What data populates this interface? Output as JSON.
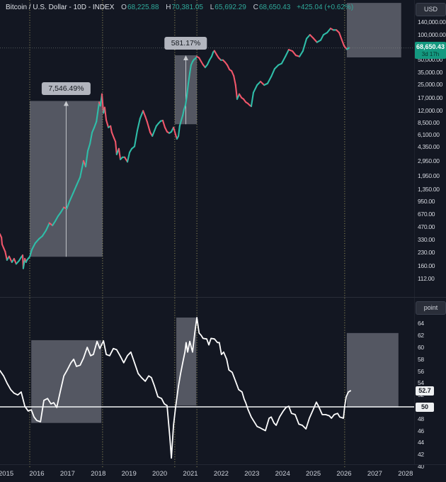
{
  "meta": {
    "background": "#131722",
    "up_color": "#2fbda8",
    "down_color": "#f0566a",
    "accent_teal": "#2fa99a",
    "badge_green": "#149980",
    "box_fill": "rgba(173,177,189,0.42)",
    "vline_color": "#b8b06a",
    "osc_line_color": "#ffffff"
  },
  "legend": {
    "title": "Bitcoin / U.S. Dollar - 10D - INDEX",
    "o_label": "O",
    "o": "68,225.88",
    "h_label": "H",
    "h": "70,381.05",
    "l_label": "L",
    "l": "65,692.29",
    "c_label": "C",
    "c": "68,650.43",
    "change": "+425.04 (+0.62%)"
  },
  "price_axis": {
    "currency_button": "USD",
    "tick_values": [
      140000,
      100000,
      50000,
      35000,
      25000,
      17000,
      12000,
      8500,
      6100,
      4350,
      2950,
      1950,
      1350,
      950,
      670,
      470,
      330,
      230,
      160,
      112
    ],
    "tick_labels": [
      "140,000.00",
      "100,000.00",
      "50,000.00",
      "35,000.00",
      "25,000.00",
      "17,000.00",
      "12,000.00",
      "8,500.00",
      "6,100.00",
      "4,350.00",
      "2,950.00",
      "1,950.00",
      "1,350.00",
      "950.00",
      "670.00",
      "470.00",
      "330.00",
      "230.00",
      "160.00",
      "112.00"
    ],
    "last_price": 68650.43,
    "last_price_label": "68,650.43",
    "countdown": "3d 17h"
  },
  "osc_axis": {
    "unit_button": "point",
    "tick_values": [
      64,
      62,
      60,
      58,
      56,
      54,
      52,
      48,
      46,
      44,
      42,
      40
    ],
    "current_value": 52.7,
    "current_label": "52.7",
    "level_value": 50,
    "level_label": "50"
  },
  "timeline": {
    "years": [
      "2015",
      "2016",
      "2017",
      "2018",
      "2019",
      "2020",
      "2021",
      "2022",
      "2023",
      "2024",
      "2025",
      "2026",
      "2027",
      "2028"
    ]
  },
  "drawings": {
    "vlines_years": [
      2015.77,
      2018.14,
      2020.49,
      2021.21,
      2026.02
    ],
    "range_measures": [
      {
        "panel": "price",
        "label": "7,546.49%",
        "year_from": 2015.77,
        "year_to": 2018.14,
        "price_from": 205,
        "price_to": 15675
      },
      {
        "panel": "price",
        "label": "581.17%",
        "year_from": 2020.49,
        "year_to": 2021.21,
        "price_from": 8200,
        "price_to": 55856
      }
    ],
    "highlight_boxes": [
      {
        "panel": "price",
        "year_from": 2026.09,
        "year_to": 2027.86,
        "price_from": 52700,
        "price_to": 240000
      },
      {
        "panel": "osc",
        "year_from": 2015.82,
        "year_to": 2018.1,
        "value_from": 47.3,
        "value_to": 61.2
      },
      {
        "panel": "osc",
        "year_from": 2020.54,
        "year_to": 2021.19,
        "value_from": 50.2,
        "value_to": 65.0
      },
      {
        "panel": "osc",
        "year_from": 2026.09,
        "year_to": 2027.77,
        "value_from": 49.9,
        "value_to": 62.4
      }
    ]
  },
  "chart_data": [
    {
      "type": "line",
      "title": "Bitcoin / U.S. Dollar, 10D, INDEX (log scale, candle-colored)",
      "x_unit": "year",
      "y_unit": "USD",
      "y_scale": "log",
      "xlim": [
        2014.8,
        2028.3
      ],
      "legend_position": "top-left",
      "grid": false,
      "points": [
        [
          2014.8,
          385
        ],
        [
          2014.85,
          350
        ],
        [
          2014.87,
          290
        ],
        [
          2014.92,
          262
        ],
        [
          2014.97,
          237
        ],
        [
          2015.03,
          187
        ],
        [
          2015.1,
          207
        ],
        [
          2015.19,
          176
        ],
        [
          2015.26,
          194
        ],
        [
          2015.33,
          168
        ],
        [
          2015.42,
          183
        ],
        [
          2015.49,
          202
        ],
        [
          2015.54,
          214
        ],
        [
          2015.56,
          148
        ],
        [
          2015.61,
          194
        ],
        [
          2015.65,
          176
        ],
        [
          2015.68,
          187
        ],
        [
          2015.72,
          195
        ],
        [
          2015.77,
          205
        ],
        [
          2015.84,
          250
        ],
        [
          2015.95,
          300
        ],
        [
          2016.07,
          337
        ],
        [
          2016.18,
          364
        ],
        [
          2016.3,
          427
        ],
        [
          2016.41,
          524
        ],
        [
          2016.51,
          490
        ],
        [
          2016.6,
          552
        ],
        [
          2016.69,
          634
        ],
        [
          2016.78,
          705
        ],
        [
          2016.88,
          811
        ],
        [
          2016.97,
          778
        ],
        [
          2017.06,
          948
        ],
        [
          2017.18,
          1200
        ],
        [
          2017.29,
          1490
        ],
        [
          2017.41,
          1880
        ],
        [
          2017.52,
          2960
        ],
        [
          2017.59,
          2520
        ],
        [
          2017.66,
          3900
        ],
        [
          2017.73,
          4750
        ],
        [
          2017.8,
          6530
        ],
        [
          2017.87,
          7500
        ],
        [
          2017.94,
          8800
        ],
        [
          2017.98,
          11200
        ],
        [
          2018.03,
          15100
        ],
        [
          2018.07,
          13700
        ],
        [
          2018.12,
          19000
        ],
        [
          2018.17,
          11200
        ],
        [
          2018.21,
          13100
        ],
        [
          2018.26,
          9200
        ],
        [
          2018.33,
          7500
        ],
        [
          2018.4,
          7800
        ],
        [
          2018.44,
          6530
        ],
        [
          2018.51,
          5600
        ],
        [
          2018.56,
          5050
        ],
        [
          2018.6,
          3540
        ],
        [
          2018.67,
          4150
        ],
        [
          2018.72,
          3080
        ],
        [
          2018.79,
          3270
        ],
        [
          2018.86,
          3270
        ],
        [
          2018.95,
          2880
        ],
        [
          2019.02,
          3750
        ],
        [
          2019.09,
          4150
        ],
        [
          2019.18,
          4420
        ],
        [
          2019.27,
          6850
        ],
        [
          2019.36,
          9600
        ],
        [
          2019.46,
          11900
        ],
        [
          2019.53,
          10200
        ],
        [
          2019.59,
          8800
        ],
        [
          2019.69,
          6530
        ],
        [
          2019.76,
          5900
        ],
        [
          2019.83,
          6850
        ],
        [
          2019.89,
          7800
        ],
        [
          2019.96,
          8400
        ],
        [
          2020.03,
          8950
        ],
        [
          2020.1,
          9100
        ],
        [
          2020.17,
          7500
        ],
        [
          2020.24,
          6650
        ],
        [
          2020.31,
          6400
        ],
        [
          2020.38,
          6650
        ],
        [
          2020.45,
          7500
        ],
        [
          2020.52,
          6100
        ],
        [
          2020.56,
          5450
        ],
        [
          2020.61,
          5900
        ],
        [
          2020.65,
          7800
        ],
        [
          2020.7,
          9100
        ],
        [
          2020.75,
          10500
        ],
        [
          2020.79,
          12300
        ],
        [
          2020.84,
          14100
        ],
        [
          2020.88,
          17500
        ],
        [
          2020.93,
          25400
        ],
        [
          2020.98,
          34200
        ],
        [
          2021.02,
          42500
        ],
        [
          2021.07,
          46900
        ],
        [
          2021.12,
          49900
        ],
        [
          2021.16,
          50900
        ],
        [
          2021.21,
          54000
        ],
        [
          2021.28,
          52000
        ],
        [
          2021.35,
          46900
        ],
        [
          2021.41,
          43000
        ],
        [
          2021.48,
          39900
        ],
        [
          2021.55,
          43000
        ],
        [
          2021.62,
          48900
        ],
        [
          2021.69,
          54000
        ],
        [
          2021.74,
          60900
        ],
        [
          2021.78,
          63400
        ],
        [
          2021.85,
          57100
        ],
        [
          2021.92,
          52000
        ],
        [
          2021.99,
          48900
        ],
        [
          2022.06,
          48900
        ],
        [
          2022.13,
          46000
        ],
        [
          2022.2,
          42500
        ],
        [
          2022.27,
          37600
        ],
        [
          2022.34,
          36100
        ],
        [
          2022.41,
          31500
        ],
        [
          2022.47,
          24400
        ],
        [
          2022.52,
          16500
        ],
        [
          2022.59,
          19000
        ],
        [
          2022.66,
          17200
        ],
        [
          2022.73,
          16500
        ],
        [
          2022.8,
          15200
        ],
        [
          2022.87,
          14600
        ],
        [
          2022.93,
          13900
        ],
        [
          2022.98,
          13500
        ],
        [
          2023.05,
          19800
        ],
        [
          2023.17,
          24400
        ],
        [
          2023.28,
          26900
        ],
        [
          2023.4,
          24400
        ],
        [
          2023.51,
          25500
        ],
        [
          2023.63,
          30900
        ],
        [
          2023.74,
          38300
        ],
        [
          2023.86,
          42500
        ],
        [
          2023.97,
          44500
        ],
        [
          2024.09,
          54000
        ],
        [
          2024.2,
          65300
        ],
        [
          2024.32,
          62800
        ],
        [
          2024.43,
          55800
        ],
        [
          2024.55,
          54000
        ],
        [
          2024.66,
          62800
        ],
        [
          2024.78,
          89000
        ],
        [
          2024.89,
          98900
        ],
        [
          2025.01,
          89000
        ],
        [
          2025.12,
          80300
        ],
        [
          2025.24,
          85300
        ],
        [
          2025.33,
          98900
        ],
        [
          2025.45,
          105000
        ],
        [
          2025.56,
          118000
        ],
        [
          2025.65,
          113000
        ],
        [
          2025.75,
          113000
        ],
        [
          2025.84,
          105000
        ],
        [
          2025.93,
          85300
        ],
        [
          2026.0,
          72700
        ],
        [
          2026.09,
          66000
        ],
        [
          2026.16,
          68650
        ]
      ]
    },
    {
      "type": "line",
      "title": "Oscillator (point)",
      "x_unit": "year",
      "ylim": [
        40,
        66
      ],
      "midline": 50,
      "last_value": 52.7,
      "points": [
        [
          2014.8,
          56.1
        ],
        [
          2014.92,
          55.2
        ],
        [
          2015.03,
          54.0
        ],
        [
          2015.15,
          52.9
        ],
        [
          2015.26,
          52.3
        ],
        [
          2015.38,
          52.0
        ],
        [
          2015.49,
          52.5
        ],
        [
          2015.61,
          50.1
        ],
        [
          2015.72,
          49.3
        ],
        [
          2015.82,
          49.5
        ],
        [
          2015.91,
          48.3
        ],
        [
          2016.0,
          47.7
        ],
        [
          2016.12,
          47.5
        ],
        [
          2016.23,
          51.1
        ],
        [
          2016.35,
          51.4
        ],
        [
          2016.46,
          50.5
        ],
        [
          2016.55,
          50.7
        ],
        [
          2016.65,
          49.9
        ],
        [
          2016.76,
          52.5
        ],
        [
          2016.88,
          55.2
        ],
        [
          2016.99,
          56.2
        ],
        [
          2017.11,
          57.4
        ],
        [
          2017.2,
          58.0
        ],
        [
          2017.29,
          56.8
        ],
        [
          2017.41,
          57.0
        ],
        [
          2017.52,
          58.2
        ],
        [
          2017.64,
          60.0
        ],
        [
          2017.75,
          58.6
        ],
        [
          2017.84,
          58.8
        ],
        [
          2017.96,
          61.0
        ],
        [
          2018.05,
          59.8
        ],
        [
          2018.17,
          61.1
        ],
        [
          2018.26,
          58.8
        ],
        [
          2018.37,
          58.6
        ],
        [
          2018.49,
          59.8
        ],
        [
          2018.6,
          59.6
        ],
        [
          2018.72,
          58.5
        ],
        [
          2018.83,
          57.4
        ],
        [
          2018.95,
          58.6
        ],
        [
          2019.06,
          59.2
        ],
        [
          2019.18,
          57.4
        ],
        [
          2019.3,
          55.6
        ],
        [
          2019.41,
          54.9
        ],
        [
          2019.53,
          54.3
        ],
        [
          2019.64,
          55.2
        ],
        [
          2019.73,
          54.9
        ],
        [
          2019.83,
          53.5
        ],
        [
          2019.94,
          51.7
        ],
        [
          2020.06,
          51.4
        ],
        [
          2020.15,
          50.5
        ],
        [
          2020.24,
          50.2
        ],
        [
          2020.33,
          44.9
        ],
        [
          2020.38,
          41.4
        ],
        [
          2020.45,
          46.9
        ],
        [
          2020.52,
          50.1
        ],
        [
          2020.61,
          53.5
        ],
        [
          2020.68,
          55.6
        ],
        [
          2020.75,
          57.4
        ],
        [
          2020.82,
          59.2
        ],
        [
          2020.86,
          60.8
        ],
        [
          2020.91,
          59.2
        ],
        [
          2020.98,
          61.0
        ],
        [
          2021.07,
          59.2
        ],
        [
          2021.14,
          62.4
        ],
        [
          2021.21,
          65.0
        ],
        [
          2021.28,
          62.4
        ],
        [
          2021.35,
          62.0
        ],
        [
          2021.41,
          61.5
        ],
        [
          2021.53,
          61.4
        ],
        [
          2021.6,
          60.4
        ],
        [
          2021.67,
          61.5
        ],
        [
          2021.78,
          61.4
        ],
        [
          2021.88,
          60.8
        ],
        [
          2021.94,
          60.8
        ],
        [
          2022.01,
          58.8
        ],
        [
          2022.08,
          59.2
        ],
        [
          2022.18,
          58.0
        ],
        [
          2022.25,
          56.2
        ],
        [
          2022.36,
          55.8
        ],
        [
          2022.47,
          54.3
        ],
        [
          2022.57,
          52.9
        ],
        [
          2022.68,
          52.5
        ],
        [
          2022.75,
          51.3
        ],
        [
          2022.8,
          50.7
        ],
        [
          2022.87,
          49.6
        ],
        [
          2022.98,
          48.3
        ],
        [
          2023.1,
          47.3
        ],
        [
          2023.17,
          46.7
        ],
        [
          2023.26,
          46.5
        ],
        [
          2023.33,
          46.3
        ],
        [
          2023.44,
          46.0
        ],
        [
          2023.56,
          48.1
        ],
        [
          2023.63,
          48.3
        ],
        [
          2023.72,
          47.3
        ],
        [
          2023.79,
          46.9
        ],
        [
          2023.9,
          48.3
        ],
        [
          2024.02,
          49.3
        ],
        [
          2024.11,
          49.9
        ],
        [
          2024.2,
          50.1
        ],
        [
          2024.29,
          48.9
        ],
        [
          2024.41,
          48.7
        ],
        [
          2024.53,
          47.1
        ],
        [
          2024.64,
          46.9
        ],
        [
          2024.76,
          46.3
        ],
        [
          2024.87,
          48.1
        ],
        [
          2024.99,
          49.5
        ],
        [
          2025.1,
          50.8
        ],
        [
          2025.17,
          50.1
        ],
        [
          2025.29,
          48.7
        ],
        [
          2025.4,
          48.7
        ],
        [
          2025.52,
          48.5
        ],
        [
          2025.59,
          48.1
        ],
        [
          2025.68,
          48.7
        ],
        [
          2025.79,
          48.9
        ],
        [
          2025.86,
          48.3
        ],
        [
          2025.98,
          48.1
        ],
        [
          2026.02,
          50.1
        ],
        [
          2026.07,
          51.7
        ],
        [
          2026.14,
          52.5
        ],
        [
          2026.21,
          52.7
        ]
      ]
    }
  ]
}
